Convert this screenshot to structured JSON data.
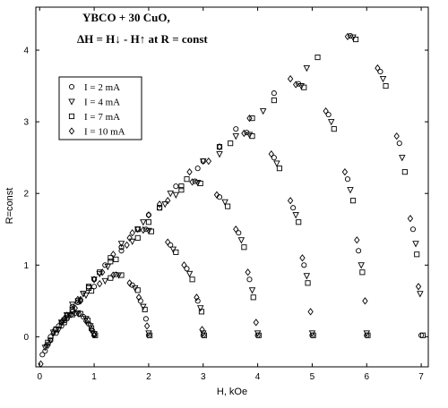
{
  "chart_data": {
    "type": "scatter",
    "annotations": [
      "YBCO + 30 CuO,",
      "ΔH = H↓ - H↑ at R = const"
    ],
    "xlabel": "H, kOe",
    "ylabel": "R=const",
    "xlim": [
      -0.07,
      7.13
    ],
    "ylim": [
      -0.42,
      4.6
    ],
    "xticks": [
      0,
      1,
      2,
      3,
      4,
      5,
      6,
      7
    ],
    "yticks": [
      0,
      1,
      2,
      3,
      4
    ],
    "series": [
      {
        "name": "I = 2 mA",
        "color": "#000000",
        "marker": "circle",
        "x": [
          0.05,
          0.2,
          0.35,
          0.5,
          0.65,
          0.8,
          0.9,
          0.97,
          1.0,
          0.1,
          0.4,
          0.7,
          1.0,
          1.4,
          1.7,
          1.85,
          1.95,
          2.0,
          0.2,
          0.6,
          1.0,
          1.5,
          1.95,
          2.4,
          2.7,
          2.9,
          3.0,
          0.3,
          0.9,
          1.5,
          2.2,
          2.85,
          3.3,
          3.65,
          3.85,
          4.0,
          0.4,
          1.2,
          2.0,
          2.9,
          3.8,
          4.3,
          4.65,
          4.85,
          5.0,
          0.5,
          1.5,
          2.5,
          3.6,
          4.75,
          5.3,
          5.65,
          5.85,
          6.0,
          0.6,
          1.8,
          3.0,
          4.3,
          5.7,
          6.25,
          6.6,
          6.85,
          7.0
        ],
        "values": [
          -0.25,
          0.0,
          0.15,
          0.27,
          0.33,
          0.28,
          0.18,
          0.08,
          0.02,
          -0.2,
          0.2,
          0.48,
          0.7,
          0.87,
          0.72,
          0.5,
          0.25,
          0.02,
          -0.05,
          0.42,
          0.8,
          1.2,
          1.5,
          1.28,
          0.95,
          0.5,
          0.02,
          0.05,
          0.7,
          1.25,
          1.8,
          2.17,
          1.95,
          1.45,
          0.8,
          0.02,
          0.15,
          1.0,
          1.7,
          2.35,
          2.85,
          2.5,
          1.8,
          1.0,
          0.02,
          0.25,
          1.25,
          2.1,
          2.9,
          3.53,
          3.1,
          2.2,
          1.2,
          0.02,
          0.35,
          1.5,
          2.45,
          3.4,
          4.2,
          3.7,
          2.7,
          1.5,
          0.02
        ]
      },
      {
        "name": "I = 4 mA",
        "color": "#000000",
        "marker": "triangle",
        "x": [
          0.1,
          0.25,
          0.4,
          0.55,
          0.7,
          0.85,
          0.93,
          1.0,
          0.2,
          0.5,
          0.85,
          1.2,
          1.45,
          1.75,
          1.9,
          2.0,
          0.35,
          0.8,
          1.25,
          1.7,
          2.0,
          2.45,
          2.75,
          2.95,
          3.0,
          0.5,
          1.1,
          1.8,
          2.5,
          2.9,
          3.4,
          3.7,
          3.9,
          4.0,
          0.6,
          1.5,
          2.4,
          3.3,
          3.85,
          4.35,
          4.7,
          4.9,
          5.0,
          0.8,
          1.9,
          3.0,
          4.1,
          4.8,
          5.35,
          5.7,
          5.9,
          6.0,
          1.0,
          2.3,
          3.6,
          4.9,
          5.75,
          6.3,
          6.65,
          6.9,
          6.98
        ],
        "values": [
          -0.15,
          0.06,
          0.2,
          0.3,
          0.33,
          0.25,
          0.15,
          0.04,
          -0.05,
          0.3,
          0.58,
          0.78,
          0.86,
          0.68,
          0.42,
          0.05,
          0.1,
          0.6,
          0.98,
          1.33,
          1.48,
          1.22,
          0.88,
          0.4,
          0.05,
          0.3,
          0.88,
          1.5,
          1.98,
          2.15,
          1.88,
          1.35,
          0.65,
          0.05,
          0.45,
          1.3,
          2.0,
          2.55,
          2.82,
          2.42,
          1.7,
          0.85,
          0.05,
          0.6,
          1.6,
          2.45,
          3.15,
          3.5,
          3.0,
          2.05,
          1.0,
          0.05,
          0.8,
          1.85,
          2.8,
          3.75,
          4.18,
          3.6,
          2.5,
          1.3,
          0.6
        ]
      },
      {
        "name": "I = 7 mA",
        "color": "#000000",
        "marker": "square",
        "x": [
          0.15,
          0.3,
          0.45,
          0.6,
          0.75,
          0.88,
          0.95,
          1.02,
          0.3,
          0.6,
          0.95,
          1.3,
          1.5,
          1.8,
          1.93,
          2.02,
          0.45,
          0.9,
          1.4,
          1.8,
          2.05,
          2.5,
          2.8,
          2.97,
          3.02,
          0.7,
          1.3,
          2.0,
          2.6,
          2.95,
          3.45,
          3.75,
          3.92,
          4.02,
          0.9,
          1.8,
          2.7,
          3.5,
          3.9,
          4.4,
          4.75,
          4.92,
          5.02,
          1.1,
          2.2,
          3.3,
          4.3,
          4.85,
          5.4,
          5.75,
          5.92,
          6.02,
          1.3,
          2.6,
          3.9,
          5.1,
          5.8,
          6.35,
          6.7,
          6.92,
          7.03
        ],
        "values": [
          -0.08,
          0.1,
          0.23,
          0.31,
          0.32,
          0.23,
          0.12,
          0.02,
          0.1,
          0.38,
          0.64,
          0.82,
          0.86,
          0.65,
          0.38,
          0.02,
          0.2,
          0.68,
          1.08,
          1.38,
          1.47,
          1.18,
          0.8,
          0.35,
          0.02,
          0.5,
          1.05,
          1.6,
          2.05,
          2.14,
          1.82,
          1.25,
          0.55,
          0.02,
          0.7,
          1.5,
          2.2,
          2.7,
          2.8,
          2.35,
          1.6,
          0.75,
          0.02,
          0.9,
          1.8,
          2.65,
          3.3,
          3.48,
          2.9,
          1.9,
          0.9,
          0.02,
          1.1,
          2.1,
          3.05,
          3.9,
          4.15,
          3.5,
          2.3,
          1.15,
          0.02
        ]
      },
      {
        "name": "I = 10 mA",
        "color": "#000000",
        "marker": "diamond",
        "x": [
          0.02,
          0.12,
          0.28,
          0.42,
          0.58,
          0.72,
          0.85,
          0.95,
          1.0,
          0.15,
          0.45,
          0.75,
          1.1,
          1.35,
          1.65,
          1.82,
          1.97,
          0.25,
          0.7,
          1.15,
          1.6,
          1.9,
          2.35,
          2.65,
          2.88,
          2.98,
          0.4,
          1.0,
          1.65,
          2.35,
          2.8,
          3.25,
          3.6,
          3.82,
          3.97,
          0.5,
          1.35,
          2.2,
          3.1,
          3.75,
          4.25,
          4.6,
          4.82,
          4.97,
          0.65,
          1.7,
          2.75,
          3.85,
          4.7,
          5.25,
          5.6,
          5.82,
          5.97,
          0.75,
          2.0,
          3.3,
          4.6,
          5.65,
          6.2,
          6.55,
          6.8,
          6.95
        ],
        "values": [
          -0.38,
          -0.12,
          0.1,
          0.22,
          0.31,
          0.32,
          0.22,
          0.1,
          0.03,
          -0.12,
          0.25,
          0.52,
          0.74,
          0.86,
          0.75,
          0.55,
          0.15,
          0.05,
          0.52,
          0.9,
          1.28,
          1.49,
          1.32,
          1.0,
          0.55,
          0.1,
          0.2,
          0.8,
          1.38,
          1.9,
          2.16,
          1.98,
          1.5,
          0.9,
          0.2,
          0.3,
          1.15,
          1.85,
          2.45,
          2.84,
          2.55,
          1.9,
          1.1,
          0.35,
          0.4,
          1.45,
          2.3,
          3.05,
          3.52,
          3.15,
          2.3,
          1.35,
          0.5,
          0.5,
          1.7,
          2.65,
          3.6,
          4.19,
          3.75,
          2.8,
          1.65,
          0.7
        ]
      }
    ]
  }
}
